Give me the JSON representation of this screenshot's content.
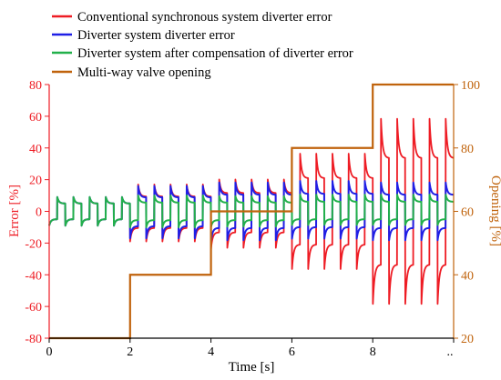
{
  "chart_data": {
    "type": "line",
    "xlabel": "Time [s]",
    "ylabel_left": "Error [%]",
    "ylabel_right": "Opening [%]",
    "xlim": [
      0,
      10
    ],
    "ylim_left": [
      -80,
      80
    ],
    "ylim_right": [
      20,
      100
    ],
    "x_ticks": [
      0,
      2,
      4,
      6,
      8
    ],
    "x_ticks_last_label": "..",
    "y_ticks_left": [
      -80,
      -60,
      -40,
      -20,
      0,
      20,
      40,
      60,
      80
    ],
    "y_ticks_right": [
      20,
      40,
      60,
      80,
      100
    ],
    "legend_position": "top",
    "grid": false,
    "colors": {
      "conventional": "#ee1c24",
      "diverter": "#1f1fe6",
      "compensated": "#22b04b",
      "valve": "#c0630c",
      "left_axis": "#ee1c24",
      "right_axis": "#c0630c"
    },
    "series": [
      {
        "name": "Conventional synchronous system diverter error",
        "axis": "left",
        "color": "#ee1c24"
      },
      {
        "name": "Diverter system diverter error",
        "axis": "left",
        "color": "#1f1fe6"
      },
      {
        "name": "Diverter system after compensation of diverter error",
        "axis": "left",
        "color": "#22b04b"
      },
      {
        "name": "Multi-way valve opening",
        "axis": "right",
        "color": "#c0630c",
        "x": [
          0,
          2,
          2,
          4,
          4,
          6,
          6,
          8,
          8,
          10
        ],
        "y": [
          20,
          20,
          40,
          40,
          60,
          60,
          80,
          80,
          100,
          100
        ]
      }
    ],
    "oscillation_segments": [
      {
        "x_start": 0,
        "x_end": 2,
        "period": 0.4,
        "peak": {
          "conventional": 9,
          "diverter": 9,
          "compensated": 9
        },
        "valley": {
          "conventional": -9,
          "diverter": -9,
          "compensated": -9
        }
      },
      {
        "x_start": 2,
        "x_end": 4,
        "period": 0.4,
        "peak": {
          "conventional": 17,
          "diverter": 16,
          "compensated": 10
        },
        "valley": {
          "conventional": -19,
          "diverter": -17,
          "compensated": -10
        }
      },
      {
        "x_start": 4,
        "x_end": 6,
        "period": 0.4,
        "peak": {
          "conventional": 21,
          "diverter": 19,
          "compensated": 10
        },
        "valley": {
          "conventional": -24,
          "diverter": -19,
          "compensated": -10
        }
      },
      {
        "x_start": 6,
        "x_end": 8,
        "period": 0.4,
        "peak": {
          "conventional": 38,
          "diverter": 20,
          "compensated": 11
        },
        "valley": {
          "conventional": -38,
          "diverter": -18,
          "compensated": -9
        }
      },
      {
        "x_start": 8,
        "x_end": 10,
        "period": 0.4,
        "peak": {
          "conventional": 61,
          "diverter": 19,
          "compensated": 11
        },
        "valley": {
          "conventional": -61,
          "diverter": -19,
          "compensated": -9
        }
      }
    ]
  }
}
